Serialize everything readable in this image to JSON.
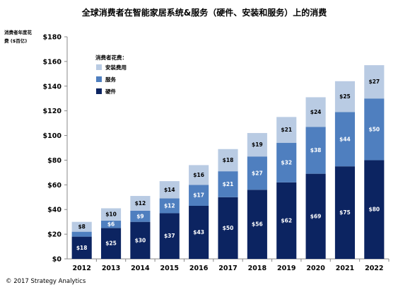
{
  "chart_data": {
    "type": "bar",
    "stacked": true,
    "title": "全球消费者在智能家居系统&服务（硬件、安装和服务）上的消费",
    "ylabel_lines": [
      "消费者年度花",
      "费 ($百亿)"
    ],
    "xlabel": "",
    "categories": [
      "2012",
      "2013",
      "2014",
      "2015",
      "2016",
      "2017",
      "2018",
      "2019",
      "2020",
      "2021",
      "2022"
    ],
    "series": [
      {
        "name": "硬件",
        "color": "#0c2461",
        "label_color": "#ffffff",
        "values": [
          18,
          25,
          30,
          37,
          43,
          50,
          56,
          62,
          69,
          75,
          80
        ]
      },
      {
        "name": "服务",
        "color": "#4f7fbf",
        "label_color": "#ffffff",
        "values": [
          4,
          6,
          9,
          12,
          17,
          21,
          27,
          32,
          38,
          44,
          50
        ]
      },
      {
        "name": "安装费用",
        "color": "#b9cbe3",
        "label_color": "#000000",
        "values": [
          8,
          10,
          12,
          14,
          16,
          18,
          19,
          21,
          24,
          25,
          27
        ]
      }
    ],
    "data_labels": [
      [
        "$18",
        "$25",
        "$30",
        "$37",
        "$43",
        "$50",
        "$56",
        "$62",
        "$69",
        "$75",
        "$80"
      ],
      [
        "",
        "$6",
        "$9",
        "$12",
        "$17",
        "$21",
        "$27",
        "$32",
        "$38",
        "$44",
        "$50"
      ],
      [
        "$8",
        "$10",
        "$12",
        "$14",
        "$16",
        "$18",
        "$19",
        "$21",
        "$24",
        "$25",
        "$27"
      ]
    ],
    "ylim": [
      0,
      180
    ],
    "yticks": [
      0,
      20,
      40,
      60,
      80,
      100,
      120,
      140,
      160,
      180
    ],
    "ytick_labels": [
      "$0",
      "$20",
      "$40",
      "$60",
      "$80",
      "$100",
      "$120",
      "$140",
      "$160",
      "$180"
    ],
    "grid": false,
    "legend": {
      "title": "消费者花费：",
      "position": "top-left",
      "order": [
        "安装费用",
        "服务",
        "硬件"
      ]
    },
    "axis_color": "#888888"
  },
  "copyright": "© 2017 Strategy Analytics"
}
